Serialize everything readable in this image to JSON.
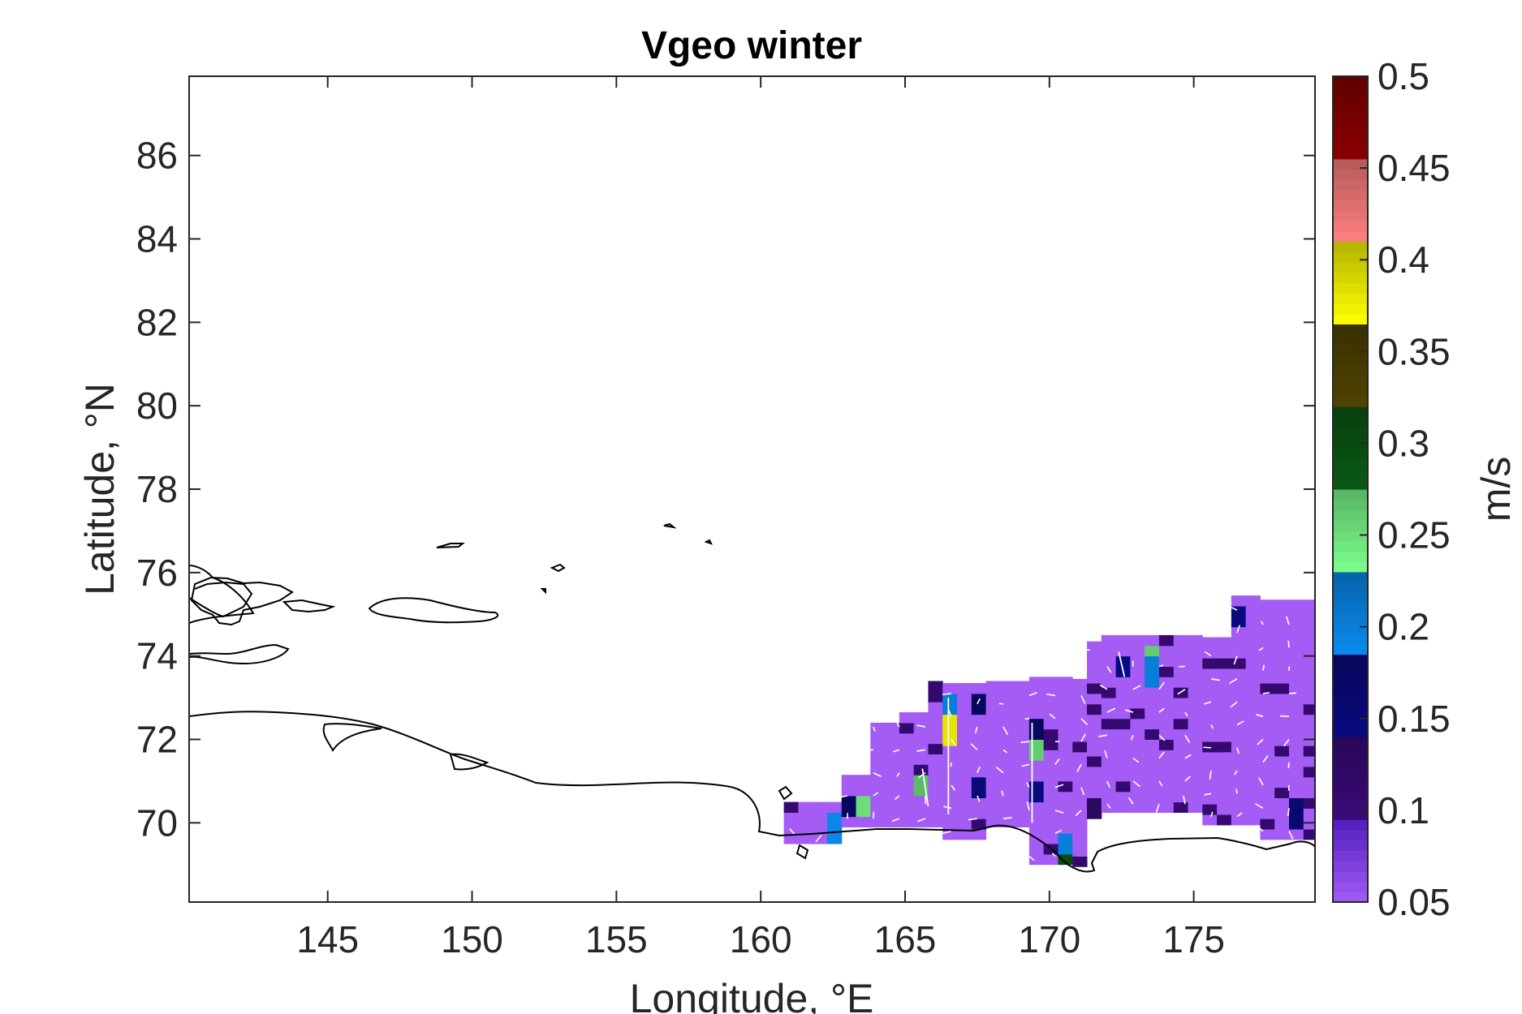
{
  "chart_data": {
    "type": "heatmap",
    "title": "Vgeo winter",
    "xlabel": "Longitude, °E",
    "ylabel": "Latitude, °N",
    "xlim": [
      140.2,
      179.2
    ],
    "ylim": [
      68.1,
      87.9
    ],
    "xticks": [
      145,
      150,
      155,
      160,
      165,
      170,
      175
    ],
    "yticks": [
      70,
      72,
      74,
      76,
      78,
      80,
      82,
      84,
      86
    ],
    "colorbar": {
      "label": "m/s",
      "range": [
        0.05,
        0.5
      ],
      "ticks": [
        "0.05",
        "0.1",
        "0.15",
        "0.2",
        "0.25",
        "0.3",
        "0.35",
        "0.4",
        "0.45",
        "0.5"
      ],
      "colors": [
        "#a45cf5",
        "#3a0a7a",
        "#0a0a80",
        "#0a8cf0",
        "#7dff8c",
        "#0a5a14",
        "#504400",
        "#ffff00",
        "#ff8080",
        "#8a0000"
      ]
    },
    "background_value": 0.05,
    "field_region": {
      "lon_range": [
        160.8,
        178.9
      ],
      "lat_range": [
        68.9,
        75.3
      ]
    },
    "notable_cells": [
      {
        "lon": 166.5,
        "lat": 72.2,
        "value": 0.38
      },
      {
        "lon": 166.5,
        "lat": 72.9,
        "value": 0.2
      },
      {
        "lon": 165.5,
        "lat": 70.9,
        "value": 0.27
      },
      {
        "lon": 163.5,
        "lat": 70.4,
        "value": 0.25
      },
      {
        "lon": 163.0,
        "lat": 70.4,
        "value": 0.18
      },
      {
        "lon": 162.5,
        "lat": 69.9,
        "value": 0.19
      },
      {
        "lon": 169.5,
        "lat": 71.8,
        "value": 0.26
      },
      {
        "lon": 169.5,
        "lat": 72.2,
        "value": 0.18
      },
      {
        "lon": 169.5,
        "lat": 70.8,
        "value": 0.14
      },
      {
        "lon": 170.5,
        "lat": 69.2,
        "value": 0.3
      },
      {
        "lon": 170.5,
        "lat": 69.5,
        "value": 0.2
      },
      {
        "lon": 173.5,
        "lat": 73.9,
        "value": 0.26
      },
      {
        "lon": 173.5,
        "lat": 73.6,
        "value": 0.2
      },
      {
        "lon": 172.5,
        "lat": 73.7,
        "value": 0.14
      },
      {
        "lon": 176.5,
        "lat": 74.9,
        "value": 0.14
      },
      {
        "lon": 178.5,
        "lat": 70.2,
        "value": 0.16
      },
      {
        "lon": 167.5,
        "lat": 72.9,
        "value": 0.18
      },
      {
        "lon": 167.5,
        "lat": 70.9,
        "value": 0.15
      },
      {
        "lon": 171.5,
        "lat": 70.4,
        "value": 0.13
      }
    ]
  }
}
